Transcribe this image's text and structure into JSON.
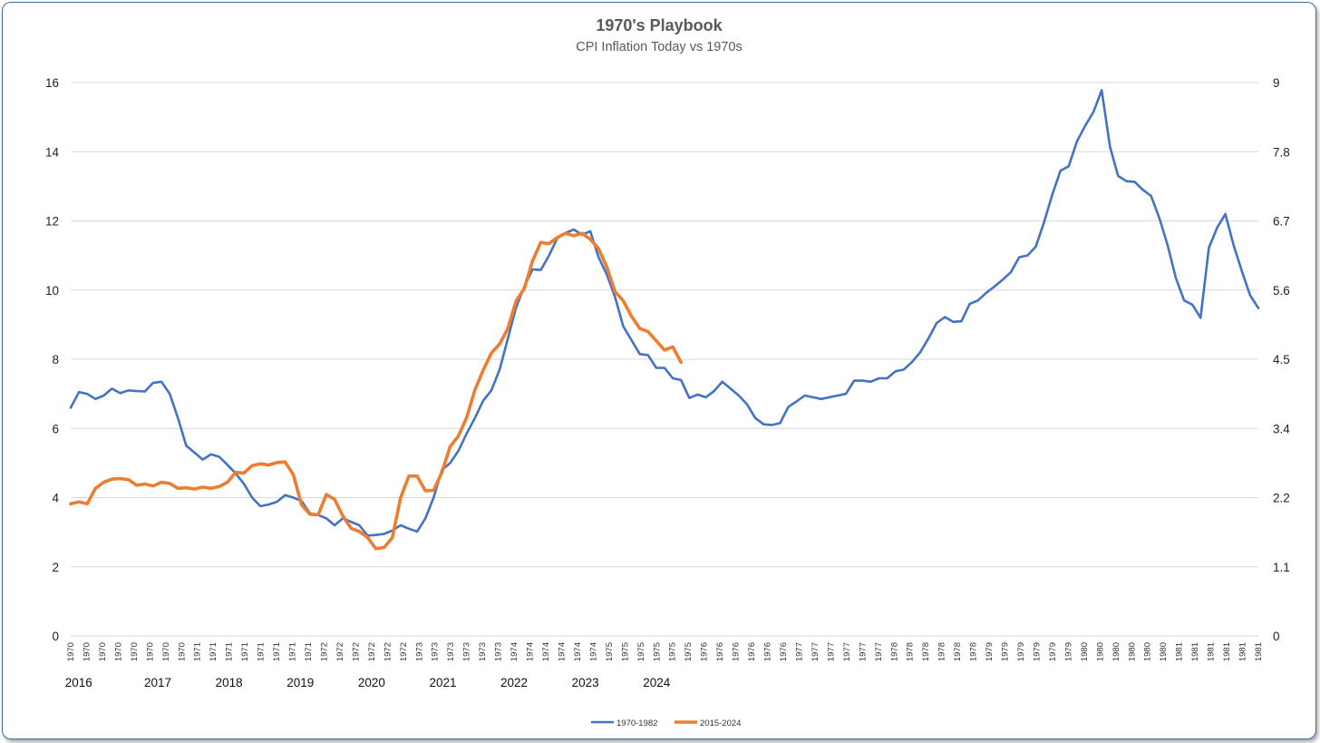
{
  "chart_data": {
    "type": "line",
    "title": "1970's Playbook",
    "subtitle": "CPI Inflation Today vs 1970s",
    "xlabel": "",
    "ylabel": "",
    "y_left": {
      "ylim": [
        0,
        16
      ],
      "ticks": [
        "0",
        "2",
        "4",
        "6",
        "8",
        "10",
        "12",
        "14",
        "16"
      ]
    },
    "y_right": {
      "ylim": [
        0,
        9
      ],
      "ticks": [
        "0",
        "1.1",
        "2.2",
        "3.4",
        "4.5",
        "5.6",
        "6.7",
        "7.8",
        "9"
      ]
    },
    "grid": true,
    "legend_position": "bottom-center",
    "colors": {
      "blue": "#4472c4",
      "orange": "#ed7d31"
    },
    "x_tick_labels": [
      "1970",
      "1970",
      "1970",
      "1970",
      "1970",
      "1970",
      "1970",
      "1970",
      "1971",
      "1971",
      "1971",
      "1971",
      "1971",
      "1971",
      "1971",
      "1971",
      "1972",
      "1972",
      "1972",
      "1972",
      "1972",
      "1972",
      "1973",
      "1973",
      "1973",
      "1973",
      "1973",
      "1973",
      "1974",
      "1974",
      "1974",
      "1974",
      "1974",
      "1974",
      "1975",
      "1975",
      "1975",
      "1975",
      "1975",
      "1975",
      "1976",
      "1976",
      "1976",
      "1976",
      "1976",
      "1976",
      "1977",
      "1977",
      "1977",
      "1977",
      "1977",
      "1977",
      "1978",
      "1978",
      "1978",
      "1978",
      "1978",
      "1978",
      "1979",
      "1979",
      "1979",
      "1979",
      "1979",
      "1979",
      "1980",
      "1980",
      "1980",
      "1980",
      "1980",
      "1980",
      "1981",
      "1981",
      "1981",
      "1981",
      "1981",
      "1981"
    ],
    "secondary_year_labels": [
      {
        "label": "2016",
        "at": 0.5
      },
      {
        "label": "2017",
        "at": 5.5
      },
      {
        "label": "2018",
        "at": 10
      },
      {
        "label": "2019",
        "at": 14.5
      },
      {
        "label": "2020",
        "at": 19
      },
      {
        "label": "2021",
        "at": 23.5
      },
      {
        "label": "2022",
        "at": 28
      },
      {
        "label": "2023",
        "at": 32.5
      },
      {
        "label": "2024",
        "at": 37
      }
    ],
    "series": [
      {
        "name": "1970-1982",
        "axis": "left",
        "color": "#4472c4",
        "values": [
          6.6,
          7.05,
          7.0,
          6.85,
          6.95,
          7.15,
          7.02,
          7.1,
          7.08,
          7.07,
          7.32,
          7.35,
          7.0,
          6.3,
          5.5,
          5.3,
          5.1,
          5.25,
          5.18,
          4.95,
          4.7,
          4.4,
          4.0,
          3.75,
          3.8,
          3.88,
          4.07,
          4.0,
          3.9,
          3.55,
          3.5,
          3.4,
          3.2,
          3.4,
          3.3,
          3.2,
          2.9,
          2.92,
          2.95,
          3.05,
          3.2,
          3.1,
          3.02,
          3.4,
          4.0,
          4.8,
          5.0,
          5.35,
          5.85,
          6.3,
          6.8,
          7.1,
          7.7,
          8.6,
          9.5,
          10.1,
          10.6,
          10.58,
          11.0,
          11.5,
          11.65,
          11.75,
          11.6,
          11.7,
          10.95,
          10.45,
          9.8,
          8.95,
          8.55,
          8.15,
          8.12,
          7.75,
          7.75,
          7.45,
          7.4,
          6.88,
          6.98,
          6.9,
          7.08,
          7.35,
          7.15,
          6.95,
          6.7,
          6.3,
          6.12,
          6.1,
          6.15,
          6.62,
          6.78,
          6.95,
          6.9,
          6.85,
          6.9,
          6.95,
          7.0,
          7.38,
          7.38,
          7.35,
          7.45,
          7.45,
          7.65,
          7.7,
          7.92,
          8.2,
          8.6,
          9.05,
          9.22,
          9.08,
          9.1,
          9.6,
          9.7,
          9.92,
          10.1,
          10.3,
          10.52,
          10.95,
          11.0,
          11.25,
          11.95,
          12.75,
          13.45,
          13.58,
          14.3,
          14.75,
          15.15,
          15.78,
          14.15,
          13.3,
          13.15,
          13.13,
          12.9,
          12.72,
          12.08,
          11.3,
          10.35,
          9.7,
          9.58,
          9.2,
          11.22,
          11.8,
          12.2,
          11.3,
          10.55,
          9.85,
          9.48
        ]
      },
      {
        "name": "2015-2024",
        "axis": "right",
        "color": "#ed7d31",
        "values": [
          2.15,
          2.18,
          2.15,
          2.4,
          2.5,
          2.55,
          2.56,
          2.54,
          2.45,
          2.47,
          2.44,
          2.5,
          2.48,
          2.4,
          2.41,
          2.39,
          2.42,
          2.4,
          2.43,
          2.5,
          2.66,
          2.65,
          2.77,
          2.8,
          2.78,
          2.82,
          2.83,
          2.62,
          2.13,
          1.98,
          1.97,
          2.3,
          2.22,
          1.95,
          1.75,
          1.7,
          1.6,
          1.42,
          1.44,
          1.6,
          2.25,
          2.6,
          2.6,
          2.36,
          2.37,
          2.66,
          3.08,
          3.25,
          3.55,
          4.0,
          4.32,
          4.6,
          4.75,
          5.0,
          5.45,
          5.65,
          6.1,
          6.4,
          6.38,
          6.48,
          6.55,
          6.51,
          6.55,
          6.45,
          6.3,
          6.0,
          5.6,
          5.45,
          5.2,
          5.0,
          4.95,
          4.8,
          4.65,
          4.7,
          4.45
        ]
      }
    ]
  }
}
